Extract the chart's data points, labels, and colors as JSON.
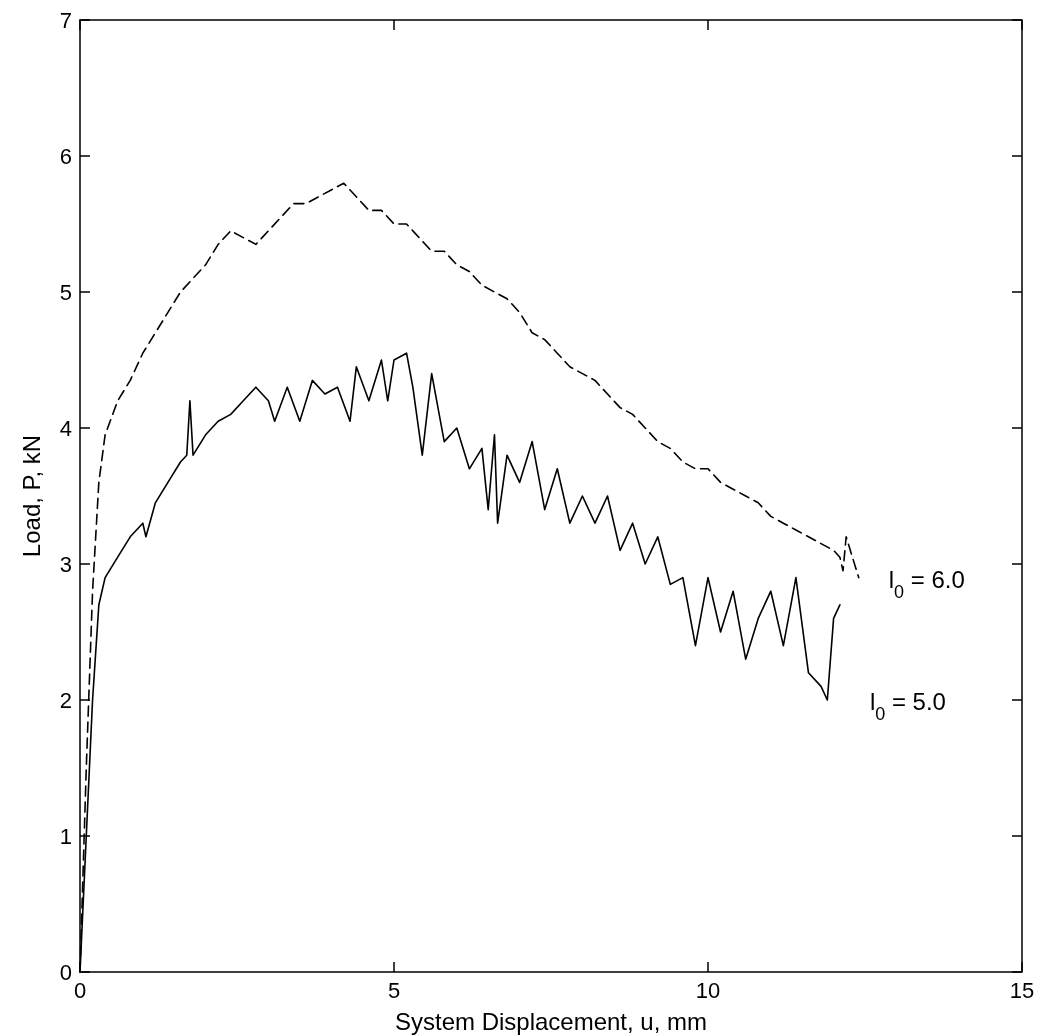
{
  "chart_data": {
    "type": "line",
    "xlabel": "System Displacement, u, mm",
    "ylabel": "Load, P, kN",
    "xlim": [
      0,
      15
    ],
    "xticks": [
      0,
      5,
      10,
      15
    ],
    "ylim": [
      0,
      7
    ],
    "yticks": [
      0,
      1,
      2,
      3,
      4,
      5,
      6,
      7
    ],
    "grid": false,
    "marker": "none",
    "series": [
      {
        "name": "l$_{0}$ = 6.0",
        "color": "#000000",
        "line_style": "dashed",
        "x": [
          0,
          0.1,
          0.2,
          0.3,
          0.4,
          0.6,
          0.8,
          1.0,
          1.2,
          1.4,
          1.6,
          1.8,
          2.0,
          2.2,
          2.4,
          2.6,
          2.8,
          3.0,
          3.2,
          3.4,
          3.6,
          3.8,
          4.0,
          4.2,
          4.4,
          4.6,
          4.8,
          5.0,
          5.2,
          5.4,
          5.6,
          5.8,
          6.0,
          6.2,
          6.4,
          6.6,
          6.8,
          7.0,
          7.2,
          7.4,
          7.6,
          7.8,
          8.0,
          8.2,
          8.4,
          8.6,
          8.8,
          9.0,
          9.2,
          9.4,
          9.6,
          9.8,
          10.0,
          10.2,
          10.4,
          10.6,
          10.8,
          11.0,
          11.2,
          11.4,
          11.6,
          11.8,
          12.0,
          12.1,
          12.15,
          12.2,
          12.3,
          12.4
        ],
        "values": [
          0,
          1.5,
          2.8,
          3.6,
          3.95,
          4.2,
          4.35,
          4.55,
          4.7,
          4.85,
          5.0,
          5.1,
          5.2,
          5.35,
          5.45,
          5.4,
          5.35,
          5.45,
          5.55,
          5.65,
          5.65,
          5.7,
          5.75,
          5.8,
          5.7,
          5.6,
          5.6,
          5.5,
          5.5,
          5.4,
          5.3,
          5.3,
          5.2,
          5.15,
          5.05,
          5.0,
          4.95,
          4.85,
          4.7,
          4.65,
          4.55,
          4.45,
          4.4,
          4.35,
          4.25,
          4.15,
          4.1,
          4.0,
          3.9,
          3.85,
          3.75,
          3.7,
          3.7,
          3.6,
          3.55,
          3.5,
          3.45,
          3.35,
          3.3,
          3.25,
          3.2,
          3.15,
          3.1,
          3.05,
          2.95,
          3.2,
          3.05,
          2.9
        ]
      },
      {
        "name": "l$_{0}$ = 5.0",
        "color": "#000000",
        "line_style": "solid",
        "x": [
          0,
          0.1,
          0.2,
          0.3,
          0.4,
          0.6,
          0.8,
          1.0,
          1.05,
          1.2,
          1.4,
          1.6,
          1.7,
          1.75,
          1.8,
          2.0,
          2.2,
          2.4,
          2.6,
          2.8,
          3.0,
          3.1,
          3.3,
          3.5,
          3.7,
          3.9,
          4.1,
          4.3,
          4.4,
          4.6,
          4.8,
          4.9,
          5.0,
          5.2,
          5.3,
          5.45,
          5.6,
          5.8,
          6.0,
          6.2,
          6.4,
          6.5,
          6.6,
          6.65,
          6.8,
          7.0,
          7.2,
          7.4,
          7.6,
          7.8,
          8.0,
          8.2,
          8.4,
          8.6,
          8.8,
          9.0,
          9.2,
          9.4,
          9.6,
          9.8,
          10.0,
          10.2,
          10.4,
          10.6,
          10.8,
          11.0,
          11.2,
          11.4,
          11.6,
          11.8,
          11.9,
          12.0,
          12.1
        ],
        "values": [
          0,
          1.0,
          2.0,
          2.7,
          2.9,
          3.05,
          3.2,
          3.3,
          3.2,
          3.45,
          3.6,
          3.75,
          3.8,
          4.2,
          3.8,
          3.95,
          4.05,
          4.1,
          4.2,
          4.3,
          4.2,
          4.05,
          4.3,
          4.05,
          4.35,
          4.25,
          4.3,
          4.05,
          4.45,
          4.2,
          4.5,
          4.2,
          4.5,
          4.55,
          4.3,
          3.8,
          4.4,
          3.9,
          4.0,
          3.7,
          3.85,
          3.4,
          3.95,
          3.3,
          3.8,
          3.6,
          3.9,
          3.4,
          3.7,
          3.3,
          3.5,
          3.3,
          3.5,
          3.1,
          3.3,
          3.0,
          3.2,
          2.85,
          2.9,
          2.4,
          2.9,
          2.5,
          2.8,
          2.3,
          2.6,
          2.8,
          2.4,
          2.9,
          2.2,
          2.1,
          2.0,
          2.6,
          2.7
        ]
      }
    ]
  }
}
